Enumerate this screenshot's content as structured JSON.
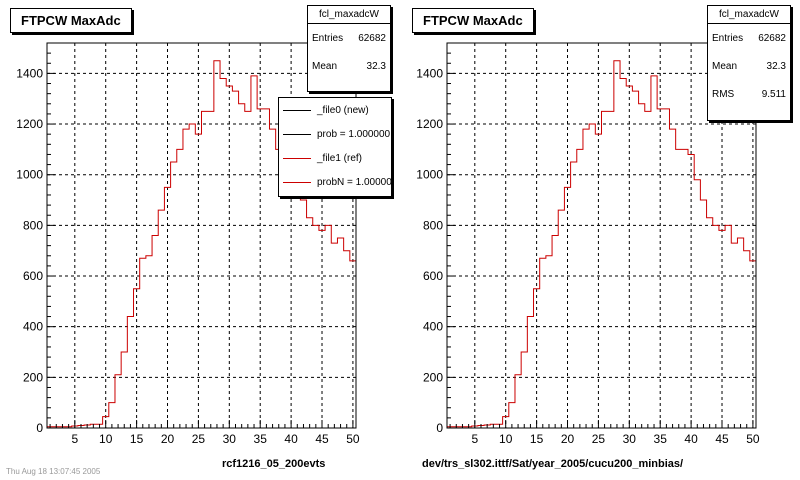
{
  "chart_data": [
    {
      "type": "bar",
      "style": "step-histogram",
      "title": "FTPCW MaxAdc",
      "xlim": [
        0.5,
        50.5
      ],
      "ylim": [
        0,
        1520
      ],
      "x_ticks": [
        5,
        10,
        15,
        20,
        25,
        30,
        35,
        40,
        45,
        50
      ],
      "y_ticks": [
        0,
        200,
        400,
        600,
        800,
        1000,
        1200,
        1400
      ],
      "grid": true,
      "stats": {
        "name": "fcl_maxadcW",
        "entries_label": "Entries",
        "entries": "62682",
        "mean_label": "Mean",
        "mean": "32.3"
      },
      "legend": {
        "placement": "top-right",
        "entries": [
          {
            "label": "_file0 (new)",
            "color": "#000000"
          },
          {
            "label": "prob = 1.000000",
            "color": "#000000"
          },
          {
            "label": "_file1 (ref)",
            "color": "#cc0000"
          },
          {
            "label": "probN = 1.000000",
            "color": "#cc0000"
          }
        ]
      },
      "x": [
        1,
        2,
        3,
        4,
        5,
        6,
        7,
        8,
        9,
        10,
        11,
        12,
        13,
        14,
        15,
        16,
        17,
        18,
        19,
        20,
        21,
        22,
        23,
        24,
        25,
        26,
        27,
        28,
        29,
        30,
        31,
        32,
        33,
        34,
        35,
        36,
        37,
        38,
        39,
        40,
        41,
        42,
        43,
        44,
        45,
        46,
        47,
        48,
        49,
        50
      ],
      "series": [
        {
          "color": "#cc0000",
          "values": [
            5,
            5,
            5,
            5,
            8,
            10,
            12,
            15,
            15,
            45,
            100,
            210,
            300,
            440,
            550,
            670,
            680,
            760,
            860,
            950,
            1050,
            1100,
            1180,
            1200,
            1160,
            1250,
            1250,
            1450,
            1380,
            1350,
            1330,
            1280,
            1250,
            1390,
            1260,
            1260,
            1180,
            1100,
            1100,
            1080,
            980,
            900,
            830,
            800,
            780,
            800,
            730,
            750,
            700,
            660
          ]
        }
      ],
      "footer": "rcf1216_05_200evts"
    },
    {
      "type": "bar",
      "style": "step-histogram",
      "title": "FTPCW MaxAdc",
      "xlim": [
        0.5,
        50.5
      ],
      "ylim": [
        0,
        1520
      ],
      "x_ticks": [
        5,
        10,
        15,
        20,
        25,
        30,
        35,
        40,
        45,
        50
      ],
      "y_ticks": [
        0,
        200,
        400,
        600,
        800,
        1000,
        1200,
        1400
      ],
      "grid": true,
      "stats": {
        "name": "fcl_maxadcW",
        "entries_label": "Entries",
        "entries": "62682",
        "mean_label": "Mean",
        "mean": "32.3",
        "rms_label": "RMS",
        "rms": "9.511"
      },
      "x": [
        1,
        2,
        3,
        4,
        5,
        6,
        7,
        8,
        9,
        10,
        11,
        12,
        13,
        14,
        15,
        16,
        17,
        18,
        19,
        20,
        21,
        22,
        23,
        24,
        25,
        26,
        27,
        28,
        29,
        30,
        31,
        32,
        33,
        34,
        35,
        36,
        37,
        38,
        39,
        40,
        41,
        42,
        43,
        44,
        45,
        46,
        47,
        48,
        49,
        50
      ],
      "series": [
        {
          "color": "#cc0000",
          "values": [
            5,
            5,
            5,
            5,
            8,
            10,
            12,
            15,
            15,
            45,
            100,
            210,
            300,
            440,
            550,
            670,
            680,
            760,
            860,
            950,
            1050,
            1100,
            1180,
            1200,
            1160,
            1250,
            1250,
            1450,
            1380,
            1350,
            1330,
            1280,
            1250,
            1390,
            1260,
            1260,
            1180,
            1100,
            1100,
            1080,
            980,
            900,
            830,
            800,
            780,
            800,
            730,
            750,
            700,
            660
          ]
        }
      ],
      "footer": "dev/trs_sl302.ittf/Sat/year_2005/cucu200_minbias/"
    }
  ],
  "timestamp": "Thu Aug 18 13:07:45 2005"
}
